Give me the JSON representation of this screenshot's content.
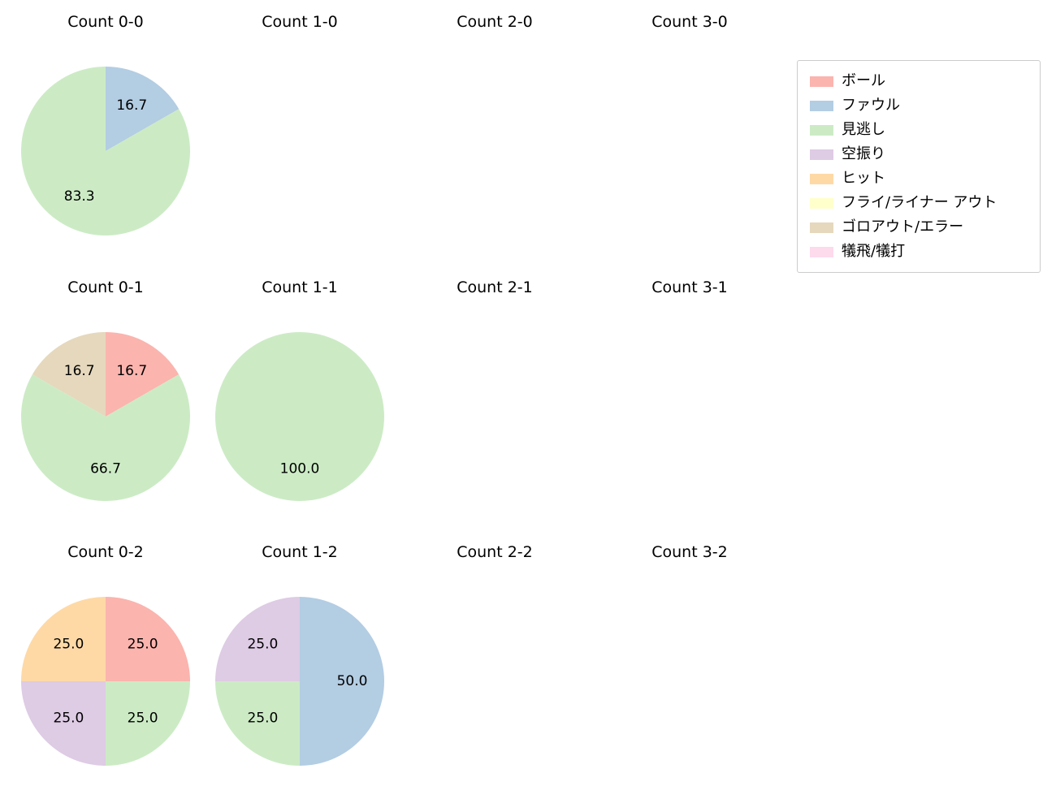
{
  "figure": {
    "background": "#ffffff",
    "text_color": "#000000"
  },
  "legend": {
    "position": "top-right",
    "border_color": "#cccccc",
    "items": [
      {
        "label": "ボール",
        "color": "#fbb4ae"
      },
      {
        "label": "ファウル",
        "color": "#b3cde3"
      },
      {
        "label": "見逃し",
        "color": "#ccebc5"
      },
      {
        "label": "空振り",
        "color": "#decbe4"
      },
      {
        "label": "ヒット",
        "color": "#fed9a6"
      },
      {
        "label": "フライ/ライナー アウト",
        "color": "#ffffcc"
      },
      {
        "label": "ゴロアウト/エラー",
        "color": "#e5d8bd"
      },
      {
        "label": "犠飛/犠打",
        "color": "#fddaec"
      }
    ]
  },
  "pie_style": {
    "start_angle": "top",
    "direction": "clockwise",
    "label_position_ratio": 0.62,
    "values_are": "percent",
    "value_decimals": 1
  },
  "chart_data": [
    {
      "type": "pie",
      "title": "Count 0-0",
      "slices": [
        {
          "label": "ファウル",
          "value": 16.7
        },
        {
          "label": "見逃し",
          "value": 83.3
        }
      ]
    },
    {
      "type": "pie",
      "title": "Count 1-0",
      "slices": []
    },
    {
      "type": "pie",
      "title": "Count 2-0",
      "slices": []
    },
    {
      "type": "pie",
      "title": "Count 3-0",
      "slices": []
    },
    {
      "type": "pie",
      "title": "Count 0-1",
      "slices": [
        {
          "label": "ボール",
          "value": 16.7
        },
        {
          "label": "見逃し",
          "value": 66.7
        },
        {
          "label": "ゴロアウト/エラー",
          "value": 16.7
        }
      ]
    },
    {
      "type": "pie",
      "title": "Count 1-1",
      "slices": [
        {
          "label": "見逃し",
          "value": 100.0
        }
      ]
    },
    {
      "type": "pie",
      "title": "Count 2-1",
      "slices": []
    },
    {
      "type": "pie",
      "title": "Count 3-1",
      "slices": []
    },
    {
      "type": "pie",
      "title": "Count 0-2",
      "slices": [
        {
          "label": "ボール",
          "value": 25.0
        },
        {
          "label": "見逃し",
          "value": 25.0
        },
        {
          "label": "空振り",
          "value": 25.0
        },
        {
          "label": "ヒット",
          "value": 25.0
        }
      ]
    },
    {
      "type": "pie",
      "title": "Count 1-2",
      "slices": [
        {
          "label": "ファウル",
          "value": 50.0
        },
        {
          "label": "見逃し",
          "value": 25.0
        },
        {
          "label": "空振り",
          "value": 25.0
        }
      ]
    },
    {
      "type": "pie",
      "title": "Count 2-2",
      "slices": []
    },
    {
      "type": "pie",
      "title": "Count 3-2",
      "slices": []
    }
  ]
}
